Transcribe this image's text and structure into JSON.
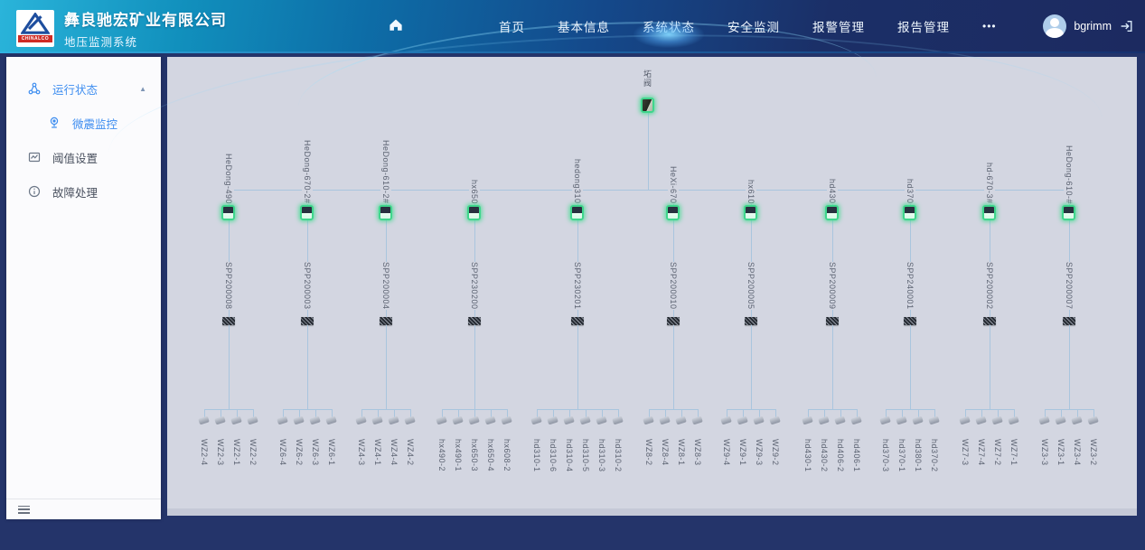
{
  "header": {
    "company": "彝良驰宏矿业有限公司",
    "system": "地压监测系统",
    "logo_text": "CHINALCO",
    "nav": [
      {
        "label": "首页"
      },
      {
        "label": "基本信息"
      },
      {
        "label": "系统状态",
        "active": true
      },
      {
        "label": "安全监测"
      },
      {
        "label": "报警管理"
      },
      {
        "label": "报告管理"
      },
      {
        "label": "•••"
      }
    ],
    "user": {
      "name": "bgrimm"
    }
  },
  "sidebar": {
    "items": [
      {
        "label": "运行状态",
        "icon": "nodes-icon",
        "expanded": true,
        "active": true
      },
      {
        "label": "微震监控",
        "icon": "webcam-icon",
        "active": true,
        "child_of": "运行状态"
      },
      {
        "label": "阈值设置",
        "icon": "threshold-chart-icon"
      },
      {
        "label": "故障处理",
        "icon": "info-circle-icon"
      }
    ]
  },
  "topology": {
    "root": {
      "label": "坧阀"
    },
    "branches": [
      {
        "label": "HeDong-490",
        "station": "SPP200008",
        "sensors": [
          "WZ2-4",
          "WZ2-3",
          "WZ2-1",
          "WZ2-2"
        ]
      },
      {
        "label": "HeDong-670-2#",
        "station": "SPP200003",
        "sensors": [
          "WZ6-4",
          "WZ6-2",
          "WZ6-3",
          "WZ6-1"
        ]
      },
      {
        "label": "HeDong-610-2#",
        "station": "SPP200004",
        "sensors": [
          "WZ4-3",
          "WZ4-1",
          "WZ4-4",
          "WZ4-2"
        ]
      },
      {
        "label": "hx650",
        "station": "SPP230200",
        "sensors": [
          "hx490-2",
          "hx490-1",
          "hx650-3",
          "hx650-4",
          "hx608-2"
        ]
      },
      {
        "label": "hedong310",
        "station": "SPP230201",
        "sensors": [
          "hd310-1",
          "hd310-6",
          "hd310-4",
          "hd310-5",
          "hd310-3",
          "hd310-2"
        ]
      },
      {
        "label": "HeXi-670",
        "station": "SPP200010",
        "sensors": [
          "WZ8-2",
          "WZ8-4",
          "WZ8-1",
          "WZ8-3"
        ]
      },
      {
        "label": "hx610",
        "station": "SPP200005",
        "sensors": [
          "WZ9-4",
          "WZ9-1",
          "WZ9-3",
          "WZ9-2"
        ]
      },
      {
        "label": "hd430",
        "station": "SPP200009",
        "sensors": [
          "hd430-1",
          "hd430-2",
          "hd406-2",
          "hd406-1"
        ]
      },
      {
        "label": "hd370",
        "station": "SPP240001",
        "sensors": [
          "hd370-3",
          "hd370-1",
          "hd380-1",
          "hd370-2"
        ]
      },
      {
        "label": "hd-670-3#",
        "station": "SPP200002",
        "sensors": [
          "WZ7-3",
          "WZ7-4",
          "WZ7-2",
          "WZ7-1"
        ]
      },
      {
        "label": "HeDong-610-#",
        "station": "SPP200007",
        "sensors": [
          "WZ3-3",
          "WZ3-1",
          "WZ3-4",
          "WZ3-2"
        ]
      }
    ],
    "colors": {
      "line": "#a9c5de",
      "device_glow": "#3fd68c",
      "panel_bg": "#d3d6e1"
    }
  }
}
